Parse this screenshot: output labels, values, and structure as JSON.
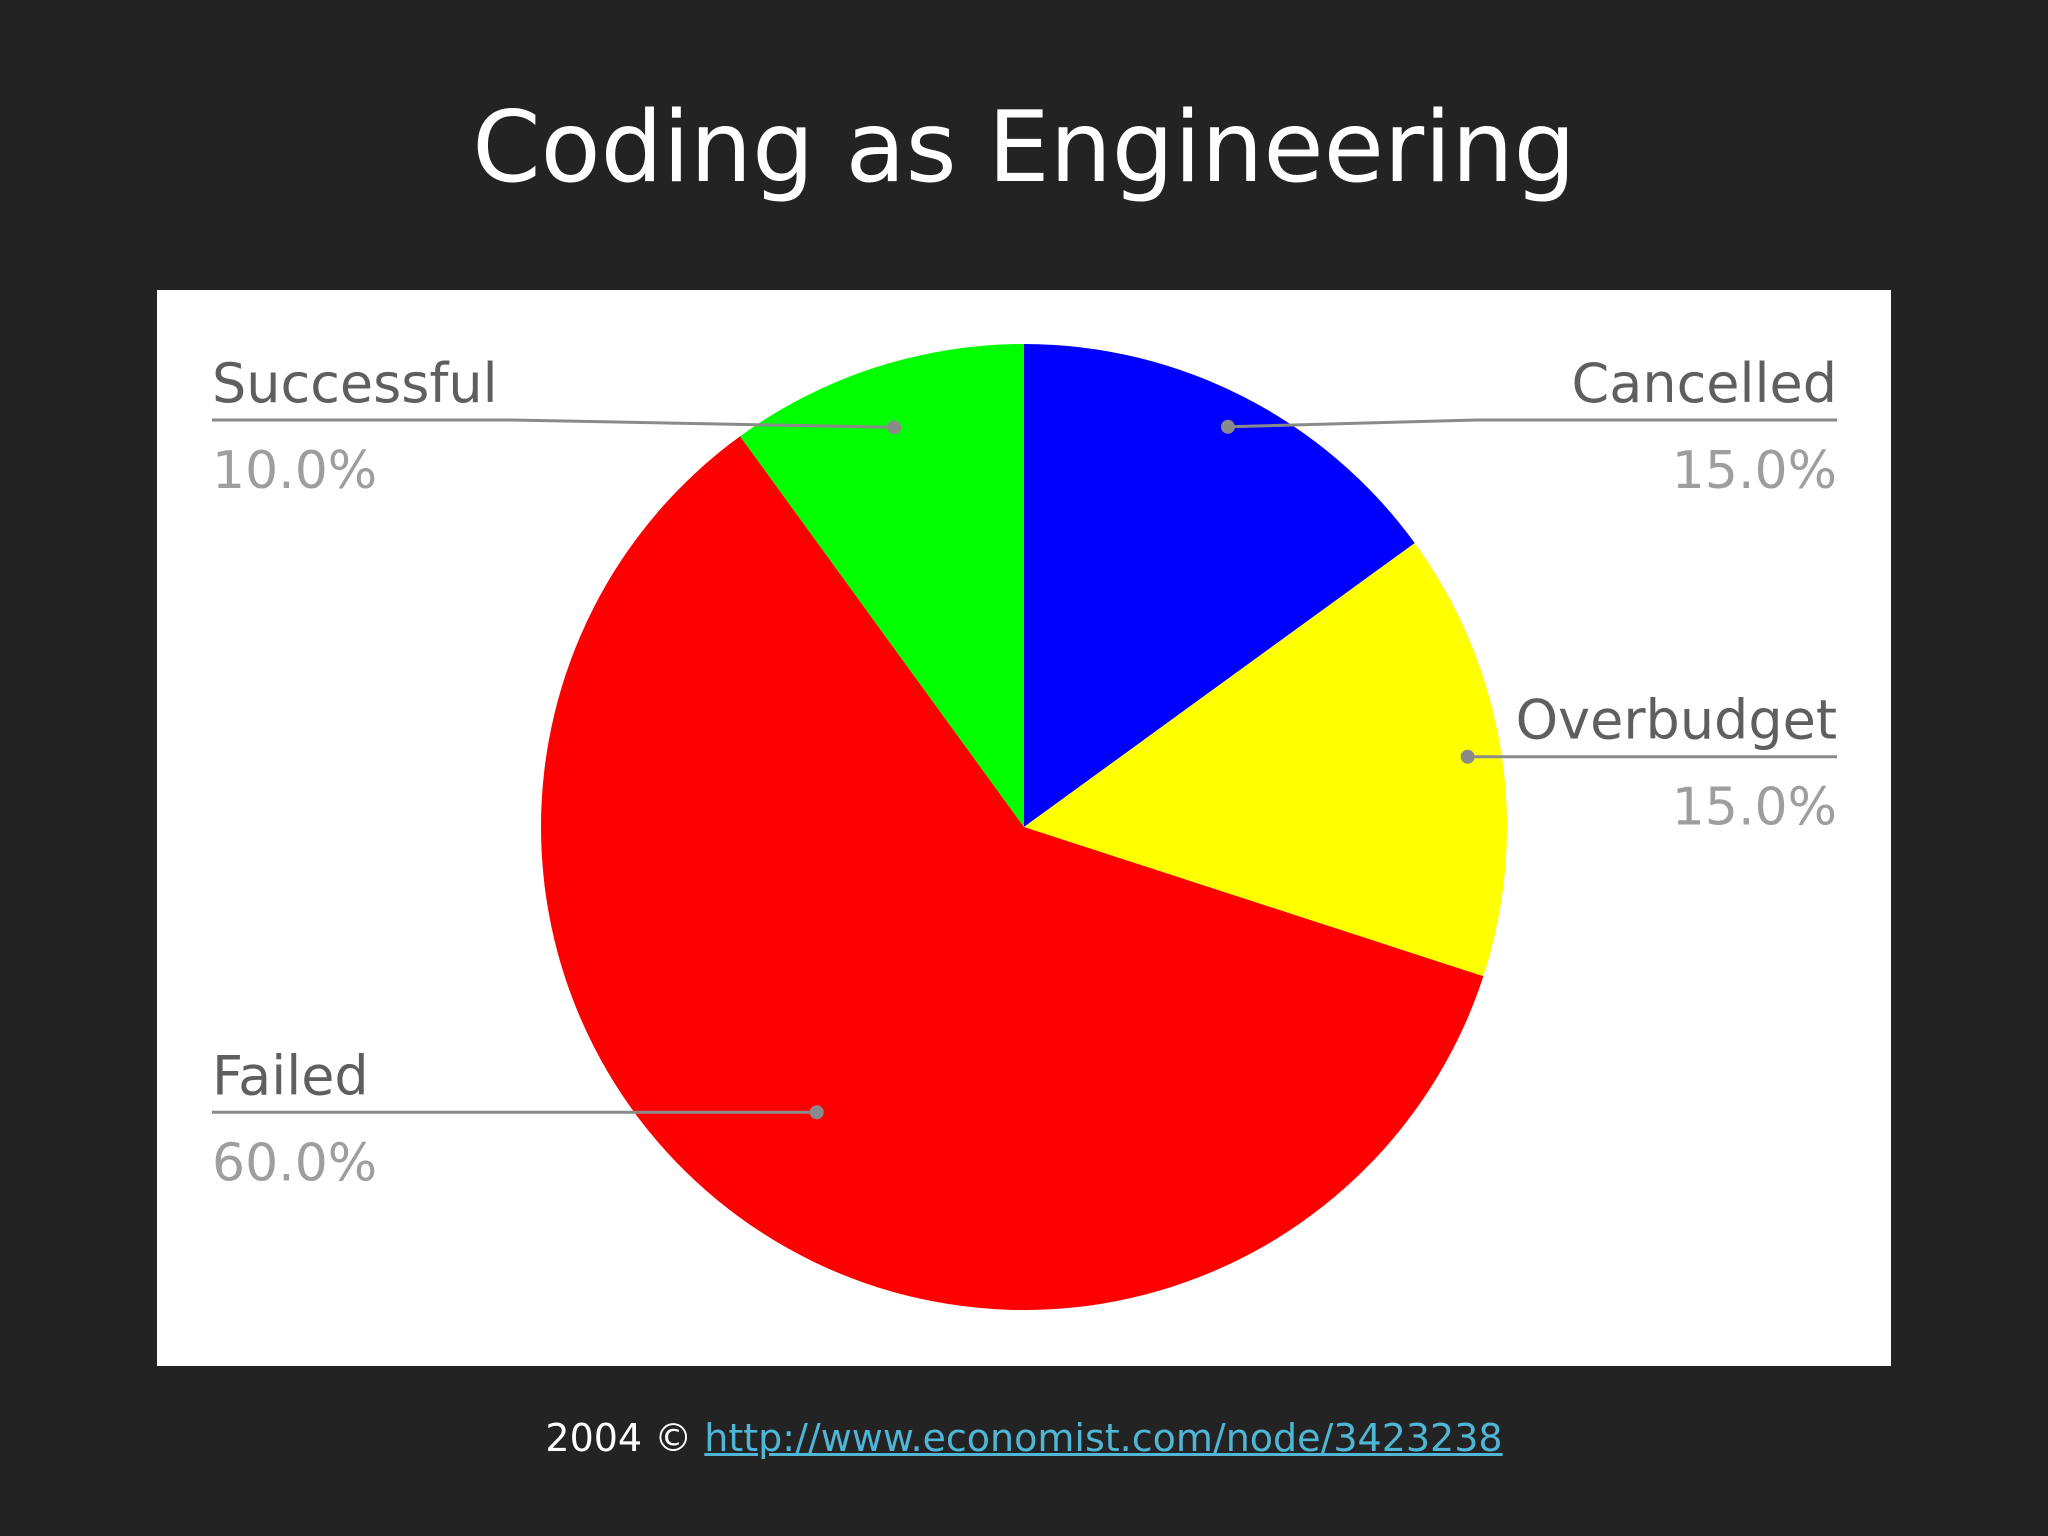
{
  "title": "Coding as Engineering",
  "footer": {
    "prefix": "2004 ©",
    "link_text": "http://www.economist.com/node/3423238"
  },
  "chart_data": {
    "type": "pie",
    "start_angle_deg": 0,
    "direction": "clockwise",
    "slices": [
      {
        "label": "Cancelled",
        "percent_label": "15.0%",
        "value": 15.0,
        "color": "#0000ff",
        "label_side": "right"
      },
      {
        "label": "Overbudget",
        "percent_label": "15.0%",
        "value": 15.0,
        "color": "#ffff00",
        "label_side": "right"
      },
      {
        "label": "Failed",
        "percent_label": "60.0%",
        "value": 60.0,
        "color": "#ff0000",
        "label_side": "left"
      },
      {
        "label": "Successful",
        "percent_label": "10.0%",
        "value": 10.0,
        "color": "#00ff00",
        "label_side": "left"
      }
    ],
    "label_color": "#5f5f5f",
    "percent_color": "#9e9e9e",
    "leader_color": "#8a8a8a"
  }
}
